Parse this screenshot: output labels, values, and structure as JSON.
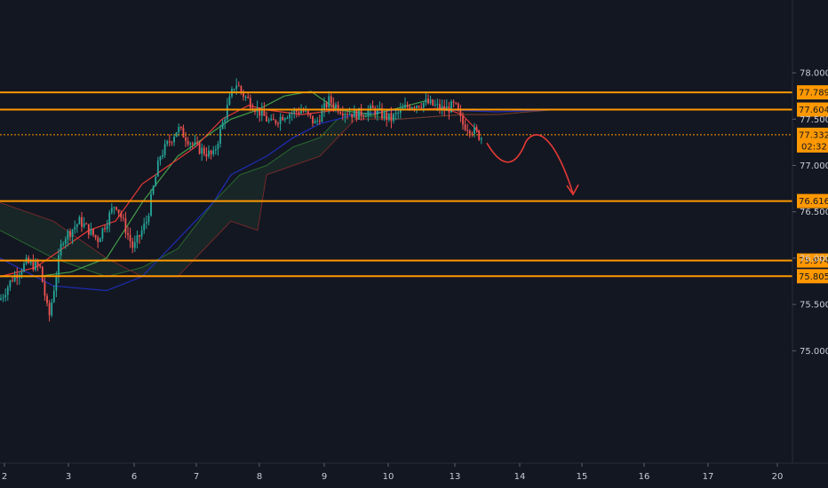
{
  "chart_data": {
    "type": "candlestick",
    "title": "",
    "xlabel": "",
    "ylabel": "",
    "x_ticks": [
      "2",
      "3",
      "6",
      "7",
      "8",
      "9",
      "10",
      "13",
      "14",
      "15",
      "16",
      "17",
      "20"
    ],
    "x_tick_days": [
      2,
      3,
      6,
      7,
      8,
      9,
      10,
      13,
      14,
      15,
      16,
      17,
      20
    ],
    "y_ticks": [
      "75.000",
      "75.500",
      "76.000",
      "76.500",
      "77.000",
      "77.500",
      "78.000"
    ],
    "y_tick_values": [
      75.0,
      75.5,
      76.0,
      76.5,
      77.0,
      77.5,
      78.0
    ],
    "ylim": [
      74.8,
      78.25
    ],
    "grid": false,
    "indicator": "Ichimoku cloud",
    "colors": {
      "up": "#26a69a",
      "down": "#ef5350",
      "level": "#ff9800",
      "conversion": "#e53935",
      "base": "#1e2db5",
      "lagging": "#43a047",
      "forecast_arrow": "#e53935"
    },
    "levels": [
      {
        "label": "77.789",
        "value": 77.789
      },
      {
        "label": "77.604",
        "value": 77.604
      },
      {
        "label": "76.616",
        "value": 76.616
      },
      {
        "label": "75.974",
        "value": 75.974
      },
      {
        "label": "75.805",
        "value": 75.805
      }
    ],
    "current_price": {
      "label": "77.332",
      "value": 77.332,
      "countdown": "02:32"
    },
    "forecast": {
      "from": 77.3,
      "bump": 77.2,
      "to": 76.65
    }
  }
}
